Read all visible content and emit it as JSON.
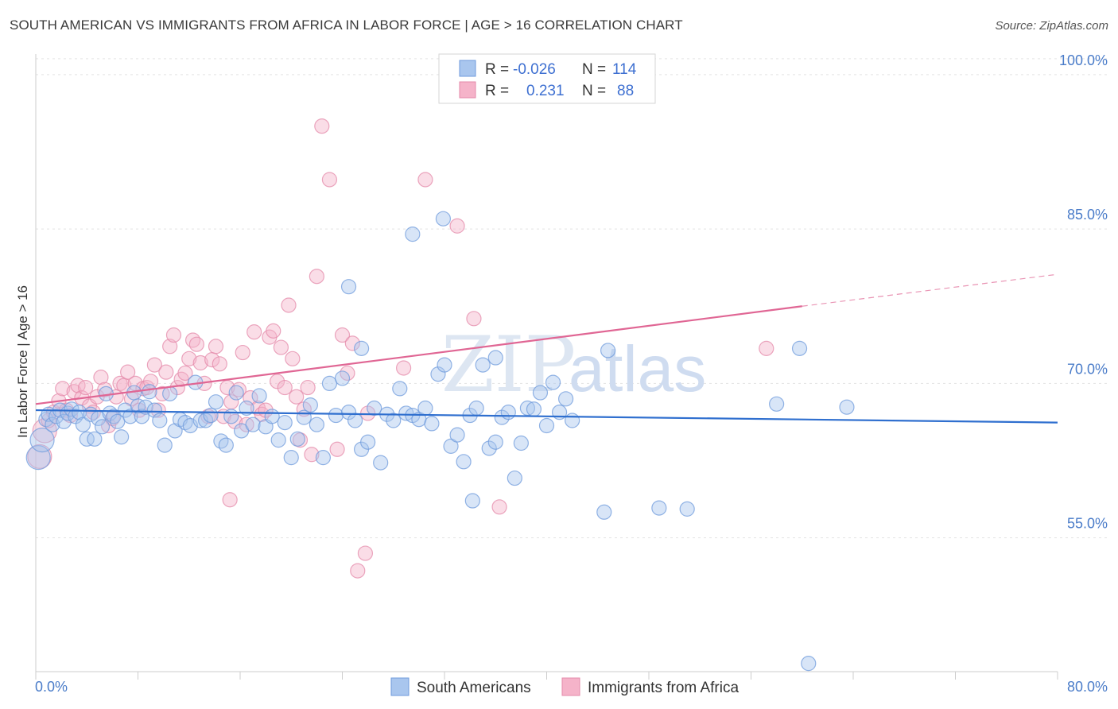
{
  "title": "SOUTH AMERICAN VS IMMIGRANTS FROM AFRICA IN LABOR FORCE | AGE > 16 CORRELATION CHART",
  "source": "Source: ZipAtlas.com",
  "watermark": {
    "zip": "ZIP",
    "atlas": "atlas"
  },
  "colors": {
    "blue": "#2f6fcf",
    "blue_fill": "#a9c6ee",
    "pink": "#e06694",
    "pink_fill": "#f5b3c9",
    "axis_text": "#4a7cc9"
  },
  "legend": {
    "rows": [
      {
        "r_label": "R =",
        "r_value": "-0.026",
        "n_label": "N =",
        "n_value": "114"
      },
      {
        "r_label": "R =",
        "r_value": "0.231",
        "n_label": "N =",
        "n_value": "88"
      }
    ]
  },
  "chart_data": {
    "type": "scatter",
    "title": "SOUTH AMERICAN VS IMMIGRANTS FROM AFRICA IN LABOR FORCE | AGE > 16 CORRELATION CHART",
    "xlabel": "",
    "ylabel": "In Labor Force | Age > 16",
    "xlim": [
      0,
      80
    ],
    "ylim": [
      42,
      102
    ],
    "x_tick_labels": [
      "0.0%",
      "80.0%"
    ],
    "y_ticks": [
      55,
      70,
      85,
      100
    ],
    "y_tick_labels": [
      "55.0%",
      "70.0%",
      "85.0%",
      "100.0%"
    ],
    "grid": true,
    "legend_position": "top-center",
    "series": [
      {
        "name": "South Americans",
        "color": "#2f6fcf",
        "trend": {
          "x": [
            0,
            80
          ],
          "y": [
            67.4,
            66.2
          ]
        },
        "points": [
          [
            0.2,
            62.8
          ],
          [
            0.5,
            64.5
          ],
          [
            0.8,
            66.5
          ],
          [
            1.0,
            67.0
          ],
          [
            1.3,
            66.0
          ],
          [
            1.6,
            66.8
          ],
          [
            1.9,
            67.4
          ],
          [
            2.2,
            66.3
          ],
          [
            2.5,
            67.1
          ],
          [
            2.8,
            67.5
          ],
          [
            3.1,
            66.8
          ],
          [
            3.4,
            67.2
          ],
          [
            3.7,
            66.0
          ],
          [
            4.0,
            64.6
          ],
          [
            4.3,
            67.0
          ],
          [
            4.6,
            64.6
          ],
          [
            4.9,
            66.6
          ],
          [
            5.2,
            65.8
          ],
          [
            5.5,
            69.0
          ],
          [
            5.8,
            67.1
          ],
          [
            6.1,
            66.8
          ],
          [
            6.4,
            66.3
          ],
          [
            6.7,
            64.8
          ],
          [
            7.0,
            67.4
          ],
          [
            7.4,
            66.8
          ],
          [
            7.7,
            69.1
          ],
          [
            8.0,
            67.8
          ],
          [
            8.3,
            66.8
          ],
          [
            8.6,
            67.7
          ],
          [
            8.9,
            69.2
          ],
          [
            9.3,
            67.4
          ],
          [
            9.7,
            66.4
          ],
          [
            10.1,
            64.0
          ],
          [
            10.5,
            69.0
          ],
          [
            10.9,
            65.4
          ],
          [
            11.3,
            66.5
          ],
          [
            11.7,
            66.2
          ],
          [
            12.1,
            65.9
          ],
          [
            12.5,
            70.1
          ],
          [
            12.9,
            66.4
          ],
          [
            13.3,
            66.4
          ],
          [
            13.7,
            66.9
          ],
          [
            14.1,
            68.2
          ],
          [
            14.5,
            64.4
          ],
          [
            14.9,
            64.0
          ],
          [
            15.3,
            66.8
          ],
          [
            15.7,
            69.1
          ],
          [
            16.1,
            65.4
          ],
          [
            16.5,
            67.6
          ],
          [
            17.0,
            66.0
          ],
          [
            17.5,
            68.8
          ],
          [
            18.0,
            65.8
          ],
          [
            18.5,
            66.8
          ],
          [
            19.0,
            64.5
          ],
          [
            19.5,
            66.2
          ],
          [
            20.0,
            62.8
          ],
          [
            20.5,
            64.6
          ],
          [
            21.0,
            66.7
          ],
          [
            21.5,
            67.9
          ],
          [
            22.0,
            66.0
          ],
          [
            22.5,
            62.8
          ],
          [
            23.0,
            70.0
          ],
          [
            23.5,
            66.9
          ],
          [
            24.0,
            70.5
          ],
          [
            24.5,
            67.2
          ],
          [
            25.0,
            66.4
          ],
          [
            25.5,
            63.6
          ],
          [
            26.0,
            64.3
          ],
          [
            26.5,
            67.6
          ],
          [
            27.0,
            62.3
          ],
          [
            27.5,
            67.0
          ],
          [
            28.0,
            66.4
          ],
          [
            28.5,
            69.5
          ],
          [
            29.0,
            67.1
          ],
          [
            29.5,
            66.9
          ],
          [
            30.0,
            66.5
          ],
          [
            30.5,
            67.6
          ],
          [
            31.0,
            66.1
          ],
          [
            31.5,
            70.9
          ],
          [
            32.0,
            71.8
          ],
          [
            32.5,
            63.9
          ],
          [
            33.0,
            65.0
          ],
          [
            33.5,
            62.4
          ],
          [
            34.0,
            66.9
          ],
          [
            34.5,
            67.6
          ],
          [
            35.0,
            71.8
          ],
          [
            35.5,
            63.7
          ],
          [
            36.0,
            64.3
          ],
          [
            36.5,
            66.7
          ],
          [
            37.0,
            67.2
          ],
          [
            37.5,
            60.8
          ],
          [
            38.0,
            64.2
          ],
          [
            38.5,
            67.6
          ],
          [
            39.0,
            67.5
          ],
          [
            39.5,
            69.1
          ],
          [
            40.0,
            65.9
          ],
          [
            40.5,
            70.1
          ],
          [
            41.0,
            67.2
          ],
          [
            41.5,
            68.5
          ],
          [
            42.0,
            66.4
          ],
          [
            24.5,
            79.4
          ],
          [
            29.5,
            84.5
          ],
          [
            31.9,
            86.0
          ],
          [
            25.5,
            73.4
          ],
          [
            36.0,
            72.5
          ],
          [
            44.8,
            73.2
          ],
          [
            48.8,
            57.9
          ],
          [
            51.0,
            57.8
          ],
          [
            59.8,
            73.4
          ],
          [
            63.5,
            67.7
          ],
          [
            58.0,
            68.0
          ],
          [
            60.5,
            42.8
          ],
          [
            44.5,
            57.5
          ],
          [
            34.2,
            58.6
          ]
        ]
      },
      {
        "name": "Immigrants from Africa",
        "color": "#e06694",
        "trend": {
          "x": [
            0,
            60
          ],
          "y": [
            68.0,
            77.5
          ]
        },
        "trend_dashed": {
          "x": [
            60,
            80
          ],
          "y": [
            77.5,
            80.6
          ]
        },
        "points": [
          [
            0.3,
            62.9
          ],
          [
            0.7,
            65.4
          ],
          [
            1.0,
            66.4
          ],
          [
            1.4,
            67.2
          ],
          [
            1.8,
            68.3
          ],
          [
            2.1,
            69.5
          ],
          [
            2.4,
            67.4
          ],
          [
            2.7,
            66.9
          ],
          [
            3.0,
            69.2
          ],
          [
            3.3,
            69.8
          ],
          [
            3.6,
            68.6
          ],
          [
            3.9,
            69.6
          ],
          [
            4.2,
            67.8
          ],
          [
            4.5,
            67.2
          ],
          [
            4.8,
            68.7
          ],
          [
            5.1,
            70.6
          ],
          [
            5.4,
            69.4
          ],
          [
            5.7,
            65.9
          ],
          [
            6.0,
            66.6
          ],
          [
            6.3,
            68.7
          ],
          [
            6.6,
            70.0
          ],
          [
            6.9,
            69.8
          ],
          [
            7.2,
            71.1
          ],
          [
            7.5,
            68.5
          ],
          [
            7.8,
            70.0
          ],
          [
            8.1,
            67.4
          ],
          [
            8.4,
            69.5
          ],
          [
            8.7,
            69.6
          ],
          [
            9.0,
            70.2
          ],
          [
            9.3,
            71.8
          ],
          [
            9.6,
            67.4
          ],
          [
            9.9,
            69.0
          ],
          [
            10.2,
            71.1
          ],
          [
            10.5,
            73.6
          ],
          [
            10.8,
            74.7
          ],
          [
            11.1,
            69.6
          ],
          [
            11.4,
            70.4
          ],
          [
            11.7,
            71.0
          ],
          [
            12.0,
            72.4
          ],
          [
            12.3,
            74.2
          ],
          [
            12.6,
            73.8
          ],
          [
            12.9,
            72.0
          ],
          [
            13.2,
            70.0
          ],
          [
            13.5,
            66.8
          ],
          [
            13.8,
            72.3
          ],
          [
            14.1,
            73.6
          ],
          [
            14.4,
            71.9
          ],
          [
            14.7,
            66.8
          ],
          [
            15.0,
            69.6
          ],
          [
            15.3,
            68.2
          ],
          [
            15.6,
            66.3
          ],
          [
            15.9,
            69.4
          ],
          [
            16.2,
            73.0
          ],
          [
            16.5,
            66.0
          ],
          [
            16.8,
            68.6
          ],
          [
            17.1,
            75.0
          ],
          [
            17.4,
            67.6
          ],
          [
            17.7,
            67.0
          ],
          [
            18.0,
            67.4
          ],
          [
            18.3,
            74.5
          ],
          [
            18.6,
            75.1
          ],
          [
            18.9,
            70.2
          ],
          [
            19.2,
            73.5
          ],
          [
            19.5,
            69.6
          ],
          [
            19.8,
            77.6
          ],
          [
            20.1,
            72.4
          ],
          [
            20.4,
            68.7
          ],
          [
            20.7,
            64.5
          ],
          [
            21.0,
            67.5
          ],
          [
            21.3,
            69.6
          ],
          [
            21.6,
            63.1
          ],
          [
            22.0,
            80.4
          ],
          [
            22.4,
            95.0
          ],
          [
            23.0,
            89.8
          ],
          [
            23.6,
            63.6
          ],
          [
            24.0,
            74.7
          ],
          [
            24.4,
            71.0
          ],
          [
            24.8,
            73.9
          ],
          [
            25.2,
            51.8
          ],
          [
            25.8,
            53.5
          ],
          [
            15.2,
            58.7
          ],
          [
            28.8,
            71.5
          ],
          [
            30.5,
            89.8
          ],
          [
            33.0,
            85.3
          ],
          [
            34.3,
            76.3
          ],
          [
            36.3,
            58.0
          ],
          [
            57.2,
            73.4
          ],
          [
            26.0,
            67.1
          ]
        ]
      }
    ]
  },
  "bottom_legend": [
    {
      "label": "South Americans"
    },
    {
      "label": "Immigrants from Africa"
    }
  ]
}
